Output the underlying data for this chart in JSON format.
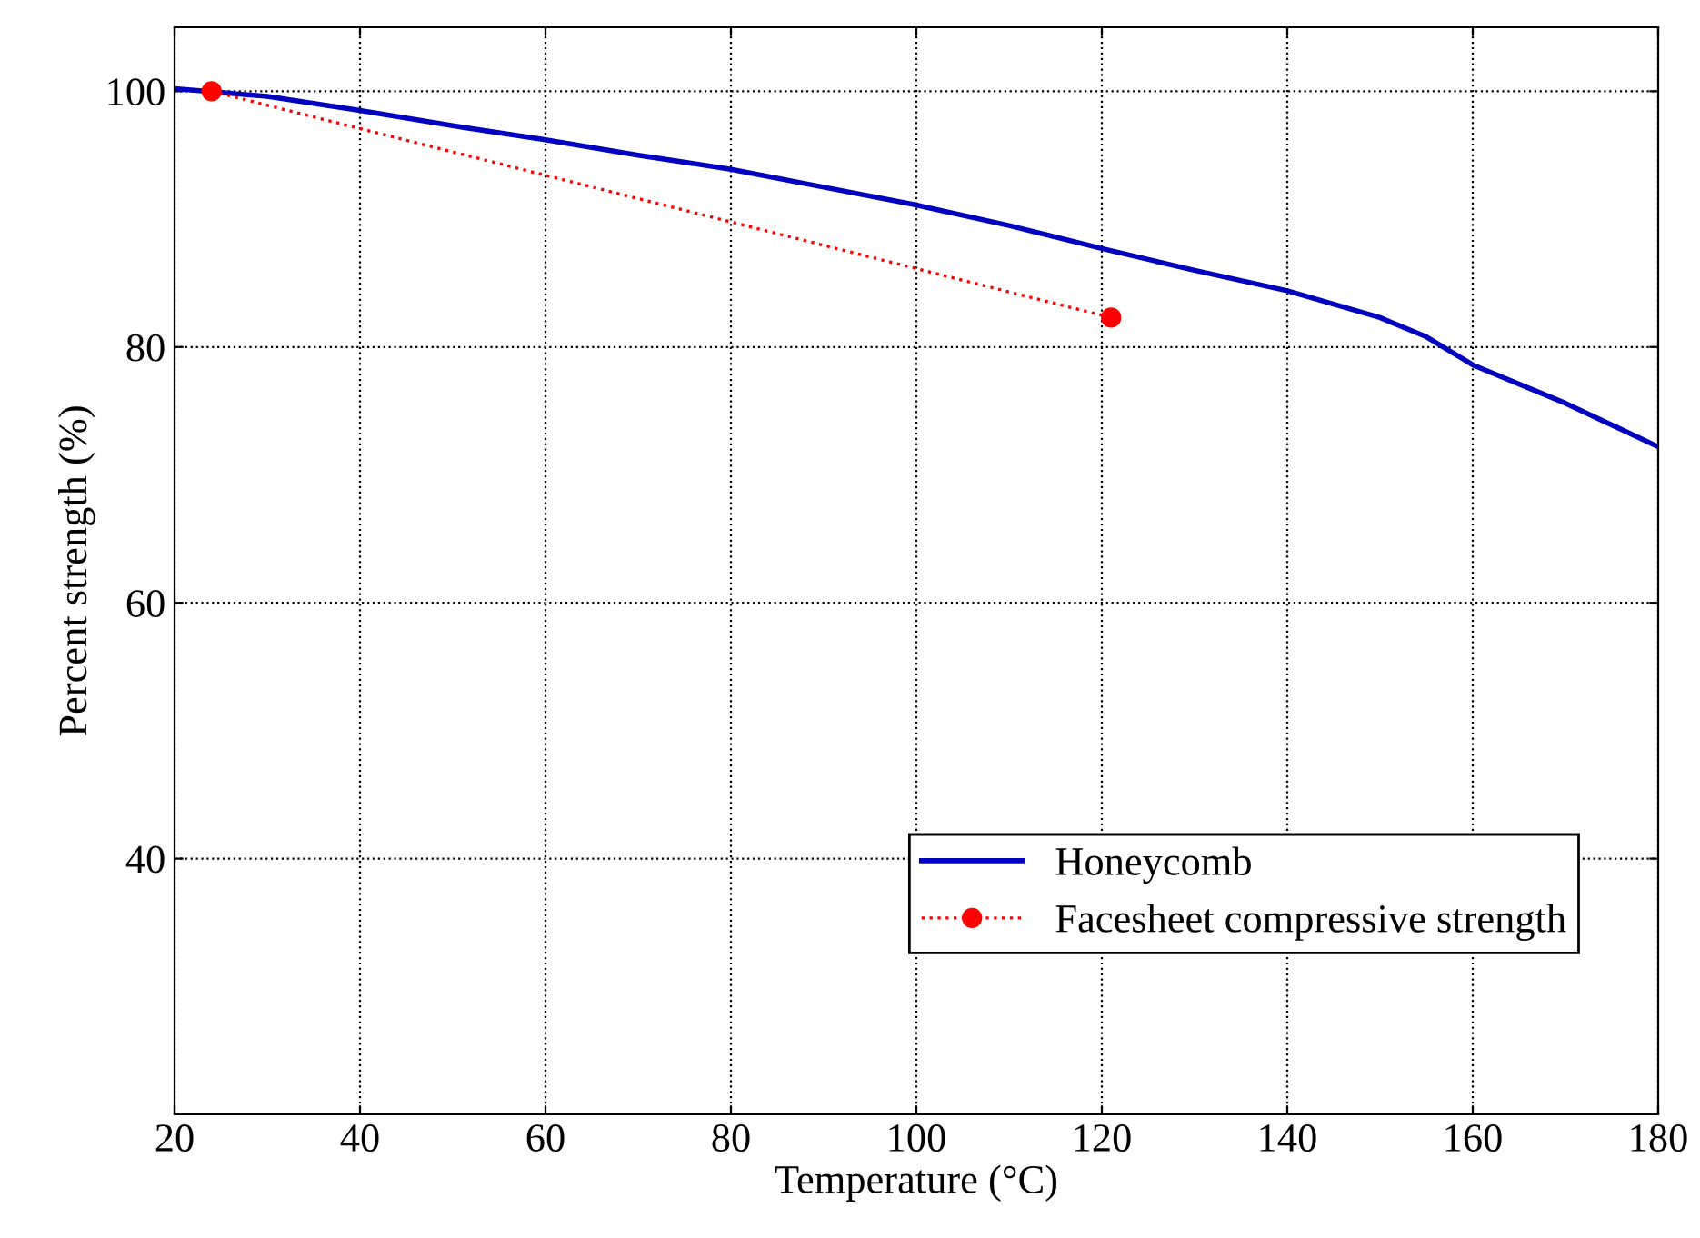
{
  "chart_data": {
    "type": "line",
    "xlabel": "Temperature (°C)",
    "ylabel": "Percent strength (%)",
    "xlim": [
      20,
      180
    ],
    "ylim": [
      20,
      105
    ],
    "xticks": [
      20,
      40,
      60,
      80,
      100,
      120,
      140,
      160,
      180
    ],
    "yticks": [
      40,
      60,
      80,
      100
    ],
    "grid": true,
    "legend": "bottom right",
    "series": [
      {
        "name": "Honeycomb",
        "color": "#0000c0",
        "marker": "none",
        "line_style": "solid",
        "x": [
          20,
          30,
          40,
          50,
          60,
          70,
          80,
          90,
          100,
          110,
          120,
          130,
          140,
          150,
          155,
          160,
          170,
          180
        ],
        "values": [
          100.2,
          99.6,
          98.5,
          97.3,
          96.2,
          95.0,
          93.9,
          92.5,
          91.1,
          89.5,
          87.7,
          86.0,
          84.4,
          82.3,
          80.8,
          78.6,
          75.6,
          72.2
        ]
      },
      {
        "name": "Facesheet compressive strength",
        "color": "#ff0000",
        "marker": "circle",
        "line_style": "dotted",
        "x": [
          24,
          121
        ],
        "values": [
          100,
          82.3
        ]
      }
    ]
  }
}
